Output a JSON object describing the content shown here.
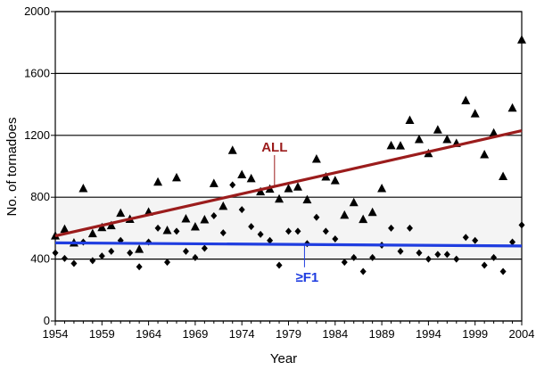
{
  "chart_data": {
    "type": "scatter",
    "xlabel": "Year",
    "ylabel": "No. of tornadoes",
    "xlim": [
      1954,
      2004
    ],
    "ylim": [
      0,
      2000
    ],
    "x_ticks": [
      "1954",
      "1959",
      "1964",
      "1969",
      "1974",
      "1979",
      "1984",
      "1989",
      "1994",
      "1999",
      "2004"
    ],
    "y_ticks": [
      "0",
      "400",
      "800",
      "1200",
      "1600",
      "2000"
    ],
    "grid": "horizontal",
    "background_band": [
      400,
      800
    ],
    "colors": {
      "all_trend": "#9b1c1c",
      "f1_trend": "#1f3de0",
      "markers": "#000000",
      "grid": "#000000",
      "band": "#f4f4f4"
    },
    "series": [
      {
        "name": "ALL",
        "marker": "triangle",
        "x": [
          1954,
          1955,
          1956,
          1957,
          1958,
          1959,
          1960,
          1961,
          1962,
          1963,
          1964,
          1965,
          1966,
          1967,
          1968,
          1969,
          1970,
          1971,
          1972,
          1973,
          1974,
          1975,
          1976,
          1977,
          1978,
          1979,
          1980,
          1981,
          1982,
          1983,
          1984,
          1985,
          1986,
          1987,
          1988,
          1989,
          1990,
          1991,
          1992,
          1993,
          1994,
          1995,
          1996,
          1997,
          1998,
          1999,
          2000,
          2001,
          2002,
          2003,
          2004
        ],
        "y": [
          550,
          593,
          504,
          856,
          564,
          604,
          616,
          697,
          657,
          463,
          704,
          898,
          585,
          926,
          660,
          608,
          654,
          888,
          741,
          1102,
          945,
          920,
          835,
          852,
          788,
          855,
          866,
          783,
          1046,
          931,
          907,
          684,
          765,
          656,
          702,
          856,
          1133,
          1132,
          1297,
          1173,
          1082,
          1235,
          1173,
          1148,
          1424,
          1339,
          1075,
          1215,
          934,
          1376,
          1817
        ]
      },
      {
        "name": "≥F1",
        "marker": "diamond",
        "x": [
          1954,
          1955,
          1956,
          1957,
          1958,
          1959,
          1960,
          1961,
          1962,
          1963,
          1964,
          1965,
          1966,
          1967,
          1968,
          1969,
          1970,
          1971,
          1972,
          1973,
          1974,
          1975,
          1976,
          1977,
          1978,
          1979,
          1980,
          1981,
          1982,
          1983,
          1984,
          1985,
          1986,
          1987,
          1988,
          1989,
          1990,
          1991,
          1992,
          1993,
          1994,
          1995,
          1996,
          1997,
          1998,
          1999,
          2000,
          2001,
          2002,
          2003,
          2004
        ],
        "y": [
          440,
          404,
          372,
          510,
          390,
          420,
          450,
          520,
          440,
          350,
          510,
          600,
          380,
          580,
          450,
          410,
          470,
          680,
          570,
          880,
          720,
          610,
          560,
          520,
          360,
          580,
          580,
          500,
          670,
          580,
          530,
          380,
          410,
          320,
          410,
          490,
          600,
          450,
          600,
          440,
          400,
          430,
          430,
          400,
          540,
          520,
          360,
          410,
          320,
          510,
          620
        ]
      }
    ],
    "trendlines": [
      {
        "name": "ALL",
        "x": [
          1954,
          2004
        ],
        "y": [
          550,
          1230
        ]
      },
      {
        "name": "≥F1",
        "x": [
          1954,
          2004
        ],
        "y": [
          505,
          485
        ]
      }
    ],
    "annotations": [
      {
        "text": "ALL",
        "x": 1977.5,
        "y": 1095
      },
      {
        "text": "≥F1",
        "x": 1981,
        "y": 255
      }
    ]
  }
}
